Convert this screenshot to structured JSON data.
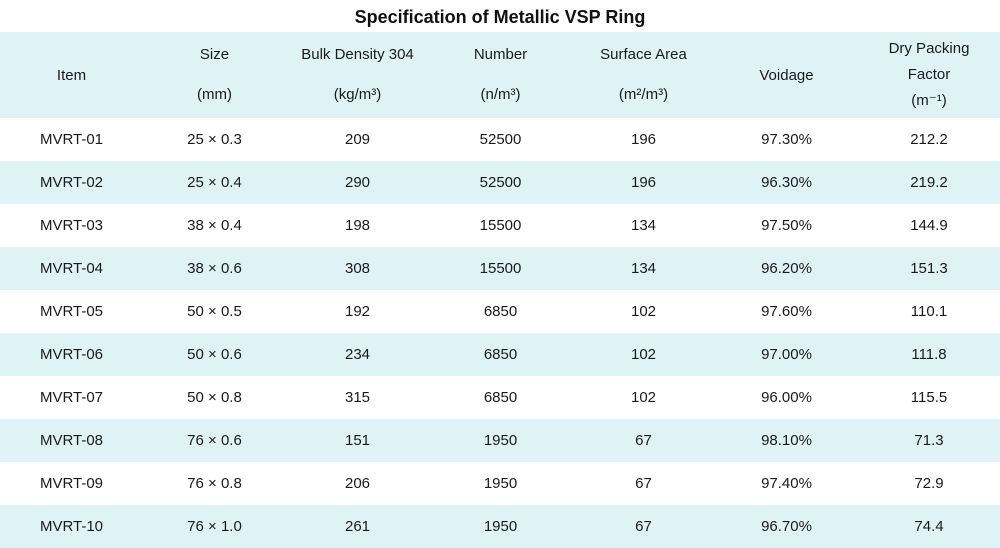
{
  "title": "Specification of Metallic VSP Ring",
  "headers": {
    "item": "Item",
    "size": "Size",
    "size_unit": "(mm)",
    "bulk_density": "Bulk Density 304",
    "bulk_density_unit": "(kg/m³)",
    "number": "Number",
    "number_unit": "(n/m³)",
    "surface_area": "Surface Area",
    "surface_area_unit": "(m²/m³)",
    "voidage": "Voidage",
    "dry_packing_line1": "Dry Packing",
    "dry_packing_line2": "Factor",
    "dry_packing_unit": "(m⁻¹)"
  },
  "rows": [
    {
      "item": "MVRT-01",
      "size": "25 × 0.3",
      "bulk_density": "209",
      "number": "52500",
      "surface_area": "196",
      "voidage": "97.30%",
      "dry_packing": "212.2"
    },
    {
      "item": "MVRT-02",
      "size": "25 × 0.4",
      "bulk_density": "290",
      "number": "52500",
      "surface_area": "196",
      "voidage": "96.30%",
      "dry_packing": "219.2"
    },
    {
      "item": "MVRT-03",
      "size": "38 × 0.4",
      "bulk_density": "198",
      "number": "15500",
      "surface_area": "134",
      "voidage": "97.50%",
      "dry_packing": "144.9"
    },
    {
      "item": "MVRT-04",
      "size": "38 × 0.6",
      "bulk_density": "308",
      "number": "15500",
      "surface_area": "134",
      "voidage": "96.20%",
      "dry_packing": "151.3"
    },
    {
      "item": "MVRT-05",
      "size": "50 × 0.5",
      "bulk_density": "192",
      "number": "6850",
      "surface_area": "102",
      "voidage": "97.60%",
      "dry_packing": "110.1"
    },
    {
      "item": "MVRT-06",
      "size": "50 × 0.6",
      "bulk_density": "234",
      "number": "6850",
      "surface_area": "102",
      "voidage": "97.00%",
      "dry_packing": "111.8"
    },
    {
      "item": "MVRT-07",
      "size": "50 × 0.8",
      "bulk_density": "315",
      "number": "6850",
      "surface_area": "102",
      "voidage": "96.00%",
      "dry_packing": "115.5"
    },
    {
      "item": "MVRT-08",
      "size": "76 × 0.6",
      "bulk_density": "151",
      "number": "1950",
      "surface_area": "67",
      "voidage": "98.10%",
      "dry_packing": "71.3"
    },
    {
      "item": "MVRT-09",
      "size": "76 × 0.8",
      "bulk_density": "206",
      "number": "1950",
      "surface_area": "67",
      "voidage": "97.40%",
      "dry_packing": "72.9"
    },
    {
      "item": "MVRT-10",
      "size": "76 × 1.0",
      "bulk_density": "261",
      "number": "1950",
      "surface_area": "67",
      "voidage": "96.70%",
      "dry_packing": "74.4"
    }
  ],
  "colors": {
    "header_background": "#dff3f7",
    "alt_row_background": "#dff3f7",
    "row_background": "#ffffff",
    "text": "#1a1a1a"
  }
}
